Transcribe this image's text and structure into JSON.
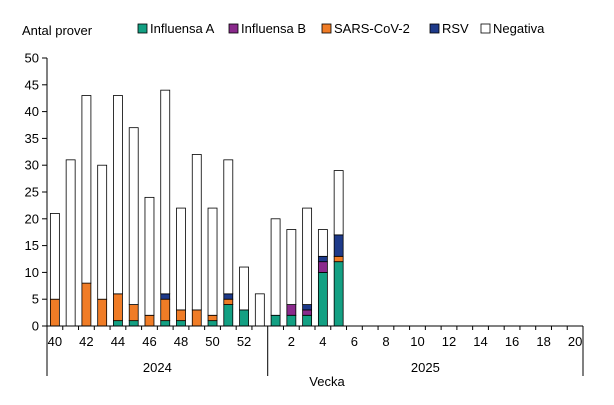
{
  "chart_data": {
    "type": "bar",
    "stacked": true,
    "ylabel": "Antal prover",
    "xlabel": "Vecka",
    "ylim": [
      0,
      50
    ],
    "yticks": [
      0,
      5,
      10,
      15,
      20,
      25,
      30,
      35,
      40,
      45,
      50
    ],
    "grid": false,
    "legend_position": "top",
    "groups": [
      {
        "label": "2024",
        "weeks": [
          40,
          41,
          42,
          43,
          44,
          45,
          46,
          47,
          48,
          49,
          50,
          51,
          52,
          53
        ]
      },
      {
        "label": "2025",
        "weeks": [
          1,
          2,
          3,
          4,
          5,
          6,
          7,
          8,
          9,
          10,
          11,
          12,
          13,
          14,
          15,
          16,
          17,
          18,
          19,
          20
        ]
      }
    ],
    "tick_labels": [
      {
        "week": 40,
        "label": "40"
      },
      {
        "week": 42,
        "label": "42"
      },
      {
        "week": 44,
        "label": "44"
      },
      {
        "week": 46,
        "label": "46"
      },
      {
        "week": 48,
        "label": "48"
      },
      {
        "week": 50,
        "label": "50"
      },
      {
        "week": 52,
        "label": "52"
      },
      {
        "week": 2,
        "label": "2"
      },
      {
        "week": 4,
        "label": "4"
      },
      {
        "week": 6,
        "label": "6"
      },
      {
        "week": 8,
        "label": "8"
      },
      {
        "week": 10,
        "label": "10"
      },
      {
        "week": 12,
        "label": "12"
      },
      {
        "week": 14,
        "label": "14"
      },
      {
        "week": 16,
        "label": "16"
      },
      {
        "week": 18,
        "label": "18"
      },
      {
        "week": 20,
        "label": "20"
      }
    ],
    "series": [
      {
        "name": "Influensa A",
        "color": "#13a083",
        "values": [
          0,
          0,
          0,
          0,
          1,
          1,
          0,
          1,
          1,
          0,
          1,
          4,
          3,
          0,
          2,
          2,
          2,
          10,
          12,
          null,
          null,
          null,
          null,
          null,
          null,
          null,
          null,
          null,
          null,
          null,
          null,
          null,
          null,
          null
        ]
      },
      {
        "name": "Influensa B",
        "color": "#8a2a8c",
        "values": [
          0,
          0,
          0,
          0,
          0,
          0,
          0,
          0,
          0,
          0,
          0,
          0,
          0,
          0,
          0,
          2,
          1,
          2,
          0,
          null,
          null,
          null,
          null,
          null,
          null,
          null,
          null,
          null,
          null,
          null,
          null,
          null,
          null,
          null
        ]
      },
      {
        "name": "SARS-CoV-2",
        "color": "#f07c26",
        "values": [
          5,
          0,
          8,
          5,
          5,
          3,
          2,
          4,
          2,
          3,
          1,
          1,
          0,
          0,
          0,
          0,
          0,
          0,
          1,
          null,
          null,
          null,
          null,
          null,
          null,
          null,
          null,
          null,
          null,
          null,
          null,
          null,
          null,
          null
        ]
      },
      {
        "name": "RSV",
        "color": "#1e3a8a",
        "values": [
          0,
          0,
          0,
          0,
          0,
          0,
          0,
          1,
          0,
          0,
          0,
          1,
          0,
          0,
          0,
          0,
          1,
          1,
          4,
          null,
          null,
          null,
          null,
          null,
          null,
          null,
          null,
          null,
          null,
          null,
          null,
          null,
          null,
          null
        ]
      },
      {
        "name": "Negativa",
        "color": "#ffffff",
        "values": [
          16,
          31,
          35,
          25,
          37,
          33,
          22,
          38,
          19,
          29,
          20,
          25,
          8,
          6,
          18,
          14,
          18,
          5,
          12,
          null,
          null,
          null,
          null,
          null,
          null,
          null,
          null,
          null,
          null,
          null,
          null,
          null,
          null,
          null
        ]
      }
    ]
  }
}
